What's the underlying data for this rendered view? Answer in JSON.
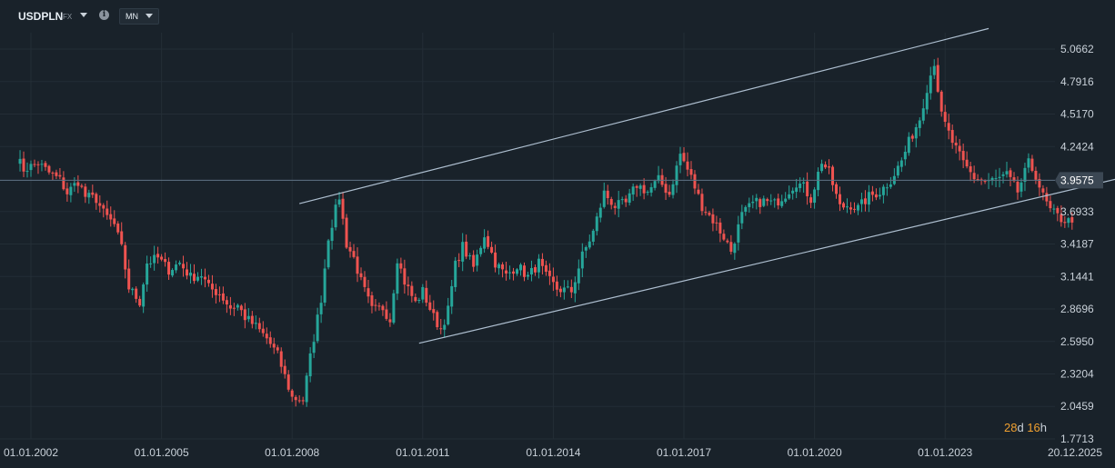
{
  "toolbar": {
    "symbol": "USDPLN",
    "market": "FX",
    "timeframe": "MN",
    "info_icon": "info-icon"
  },
  "countdown": {
    "days": "28",
    "days_unit": "d",
    "hours": "16",
    "hours_unit": "h"
  },
  "chart_data": {
    "type": "candlestick",
    "x_tick_labels": [
      "01.01.2002",
      "01.01.2005",
      "01.01.2008",
      "01.01.2011",
      "01.01.2014",
      "01.01.2017",
      "01.01.2020",
      "01.01.2023",
      "20.12.2025"
    ],
    "y_tick_labels": [
      "5.0662",
      "4.7916",
      "4.5170",
      "4.2424",
      "3.6933",
      "3.4187",
      "3.1441",
      "2.8696",
      "2.5950",
      "2.3204",
      "2.0459",
      "1.7713"
    ],
    "current_price": "3.9575",
    "ylim": [
      1.7713,
      5.0662
    ],
    "grid": true,
    "colors": {
      "up": "#26a69a",
      "down": "#ef5350",
      "trendline": "#aebfd0",
      "price_line": "#5f7386",
      "grid": "#232d36",
      "price_badge": "#3b4753"
    },
    "anchors": [
      [
        "2001-09",
        4.15
      ],
      [
        "2001-11",
        4.05
      ],
      [
        "2002-03",
        4.1
      ],
      [
        "2002-06",
        4.02
      ],
      [
        "2002-09",
        3.96
      ],
      [
        "2002-11",
        3.85
      ],
      [
        "2003-02",
        3.95
      ],
      [
        "2003-04",
        3.82
      ],
      [
        "2003-07",
        3.8
      ],
      [
        "2003-09",
        3.68
      ],
      [
        "2003-12",
        3.58
      ],
      [
        "2004-02",
        3.38
      ],
      [
        "2004-04",
        3.05
      ],
      [
        "2004-07",
        2.93
      ],
      [
        "2004-09",
        3.26
      ],
      [
        "2004-12",
        3.3
      ],
      [
        "2005-03",
        3.2
      ],
      [
        "2005-06",
        3.26
      ],
      [
        "2005-09",
        3.14
      ],
      [
        "2005-12",
        3.16
      ],
      [
        "2006-02",
        3.05
      ],
      [
        "2006-05",
        3.0
      ],
      [
        "2006-08",
        2.88
      ],
      [
        "2006-10",
        2.9
      ],
      [
        "2006-12",
        2.8
      ],
      [
        "2007-03",
        2.72
      ],
      [
        "2007-06",
        2.62
      ],
      [
        "2007-09",
        2.48
      ],
      [
        "2007-11",
        2.3
      ],
      [
        "2008-01",
        2.12
      ],
      [
        "2008-04",
        2.1
      ],
      [
        "2008-06",
        2.46
      ],
      [
        "2008-09",
        2.96
      ],
      [
        "2008-11",
        3.48
      ],
      [
        "2009-02",
        3.82
      ],
      [
        "2009-04",
        3.42
      ],
      [
        "2009-06",
        3.3
      ],
      [
        "2009-08",
        3.1
      ],
      [
        "2009-11",
        2.86
      ],
      [
        "2010-02",
        2.88
      ],
      [
        "2010-04",
        2.78
      ],
      [
        "2010-06",
        3.3
      ],
      [
        "2010-08",
        3.1
      ],
      [
        "2010-11",
        2.92
      ],
      [
        "2011-01",
        3.02
      ],
      [
        "2011-04",
        2.8
      ],
      [
        "2011-06",
        2.7
      ],
      [
        "2011-08",
        2.86
      ],
      [
        "2011-10",
        3.24
      ],
      [
        "2011-12",
        3.4
      ],
      [
        "2012-03",
        3.22
      ],
      [
        "2012-06",
        3.5
      ],
      [
        "2012-09",
        3.26
      ],
      [
        "2012-12",
        3.15
      ],
      [
        "2013-03",
        3.24
      ],
      [
        "2013-06",
        3.14
      ],
      [
        "2013-09",
        3.26
      ],
      [
        "2013-11",
        3.14
      ],
      [
        "2014-02",
        3.04
      ],
      [
        "2014-06",
        3.02
      ],
      [
        "2014-09",
        3.32
      ],
      [
        "2014-12",
        3.52
      ],
      [
        "2015-03",
        3.85
      ],
      [
        "2015-06",
        3.74
      ],
      [
        "2015-09",
        3.76
      ],
      [
        "2015-12",
        3.92
      ],
      [
        "2016-03",
        3.86
      ],
      [
        "2016-06",
        3.96
      ],
      [
        "2016-09",
        3.84
      ],
      [
        "2016-12",
        4.18
      ],
      [
        "2017-03",
        3.98
      ],
      [
        "2017-06",
        3.74
      ],
      [
        "2017-09",
        3.62
      ],
      [
        "2017-12",
        3.48
      ],
      [
        "2018-02",
        3.36
      ],
      [
        "2018-05",
        3.66
      ],
      [
        "2018-08",
        3.76
      ],
      [
        "2018-11",
        3.78
      ],
      [
        "2019-02",
        3.76
      ],
      [
        "2019-05",
        3.84
      ],
      [
        "2019-08",
        3.94
      ],
      [
        "2019-10",
        3.9
      ],
      [
        "2019-12",
        3.8
      ],
      [
        "2020-03",
        4.12
      ],
      [
        "2020-05",
        4.02
      ],
      [
        "2020-08",
        3.73
      ],
      [
        "2020-11",
        3.75
      ],
      [
        "2021-01",
        3.72
      ],
      [
        "2021-04",
        3.82
      ],
      [
        "2021-07",
        3.86
      ],
      [
        "2021-10",
        3.96
      ],
      [
        "2022-01",
        4.12
      ],
      [
        "2022-03",
        4.28
      ],
      [
        "2022-06",
        4.48
      ],
      [
        "2022-08",
        4.74
      ],
      [
        "2022-10",
        4.96
      ],
      [
        "2022-12",
        4.5
      ],
      [
        "2023-03",
        4.28
      ],
      [
        "2023-06",
        4.1
      ],
      [
        "2023-09",
        3.98
      ],
      [
        "2023-12",
        3.95
      ],
      [
        "2024-03",
        3.96
      ],
      [
        "2024-06",
        4.0
      ],
      [
        "2024-09",
        3.86
      ],
      [
        "2024-12",
        4.1
      ],
      [
        "2025-02",
        4.0
      ],
      [
        "2025-04",
        3.82
      ],
      [
        "2025-06",
        3.7
      ],
      [
        "2025-09",
        3.63
      ],
      [
        "2025-12",
        3.6
      ]
    ],
    "trendlines": [
      {
        "start": [
          "2008-03",
          3.76
        ],
        "end": [
          "2024-01",
          5.24
        ]
      },
      {
        "start": [
          "2010-12",
          2.58
        ],
        "end": [
          "2028-01",
          4.06
        ]
      }
    ]
  }
}
